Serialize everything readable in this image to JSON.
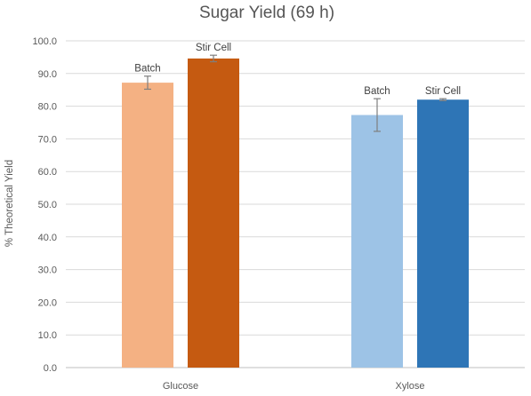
{
  "chart_data": {
    "type": "bar",
    "title": "Sugar Yield (69 h)",
    "xlabel": "",
    "ylabel": "% Theoretical Yield",
    "ylim": [
      0,
      100
    ],
    "ytick_step": 10,
    "ytick_labels": [
      "0.0",
      "10.0",
      "20.0",
      "30.0",
      "40.0",
      "50.0",
      "60.0",
      "70.0",
      "80.0",
      "90.0",
      "100.0"
    ],
    "categories": [
      "Glucose",
      "Xylose"
    ],
    "groups": [
      {
        "category": "Glucose",
        "bars": [
          {
            "label": "Batch",
            "value": 87.2,
            "error": 2.0,
            "color": "#F4B183"
          },
          {
            "label": "Stir Cell",
            "value": 94.6,
            "error": 1.0,
            "color": "#C55A11"
          }
        ]
      },
      {
        "category": "Xylose",
        "bars": [
          {
            "label": "Batch",
            "value": 77.3,
            "error": 5.0,
            "color": "#9DC3E6"
          },
          {
            "label": "Stir Cell",
            "value": 82.0,
            "error": 0.3,
            "color": "#2E75B6"
          }
        ]
      }
    ],
    "grid": true,
    "legend": "none"
  }
}
